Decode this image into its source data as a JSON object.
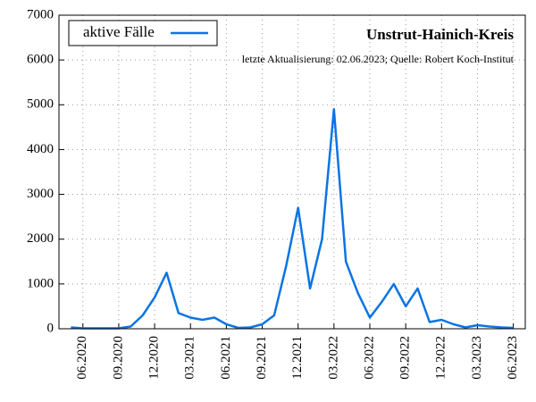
{
  "chart_data": {
    "type": "line",
    "title": "Unstrut-Hainich-Kreis",
    "subtitle": "letzte Aktualisierung: 02.06.2023; Quelle: Robert Koch-Institut",
    "x": [
      "2020-05",
      "2020-06",
      "2020-07",
      "2020-08",
      "2020-09",
      "2020-10",
      "2020-11",
      "2020-12",
      "2021-01",
      "2021-02",
      "2021-03",
      "2021-04",
      "2021-05",
      "2021-06",
      "2021-07",
      "2021-08",
      "2021-09",
      "2021-10",
      "2021-11",
      "2021-12",
      "2022-01",
      "2022-02",
      "2022-03",
      "2022-04",
      "2022-05",
      "2022-06",
      "2022-07",
      "2022-08",
      "2022-09",
      "2022-10",
      "2022-11",
      "2022-12",
      "2023-01",
      "2023-02",
      "2023-03",
      "2023-04",
      "2023-05",
      "2023-06"
    ],
    "series": [
      {
        "name": "aktive Fälle",
        "color": "#0b74e4",
        "values": [
          30,
          10,
          10,
          10,
          10,
          50,
          300,
          700,
          1250,
          350,
          250,
          200,
          250,
          100,
          20,
          30,
          100,
          300,
          1400,
          2700,
          900,
          2000,
          4900,
          1500,
          800,
          250,
          600,
          1000,
          500,
          900,
          150,
          200,
          100,
          30,
          80,
          50,
          30,
          20
        ]
      }
    ],
    "xlim": [
      "2020-04",
      "2023-07"
    ],
    "xticks": [
      {
        "value": "2020-06",
        "label": "06.2020"
      },
      {
        "value": "2020-09",
        "label": "09.2020"
      },
      {
        "value": "2020-12",
        "label": "12.2020"
      },
      {
        "value": "2021-03",
        "label": "03.2021"
      },
      {
        "value": "2021-06",
        "label": "06.2021"
      },
      {
        "value": "2021-09",
        "label": "09.2021"
      },
      {
        "value": "2021-12",
        "label": "12.2021"
      },
      {
        "value": "2022-03",
        "label": "03.2022"
      },
      {
        "value": "2022-06",
        "label": "06.2022"
      },
      {
        "value": "2022-09",
        "label": "09.2022"
      },
      {
        "value": "2022-12",
        "label": "12.2022"
      },
      {
        "value": "2023-03",
        "label": "03.2023"
      },
      {
        "value": "2023-06",
        "label": "06.2023"
      }
    ],
    "ylim": [
      0,
      7000
    ],
    "yticks": [
      0,
      1000,
      2000,
      3000,
      4000,
      5000,
      6000,
      7000
    ],
    "grid": true,
    "legend": "upper left"
  }
}
